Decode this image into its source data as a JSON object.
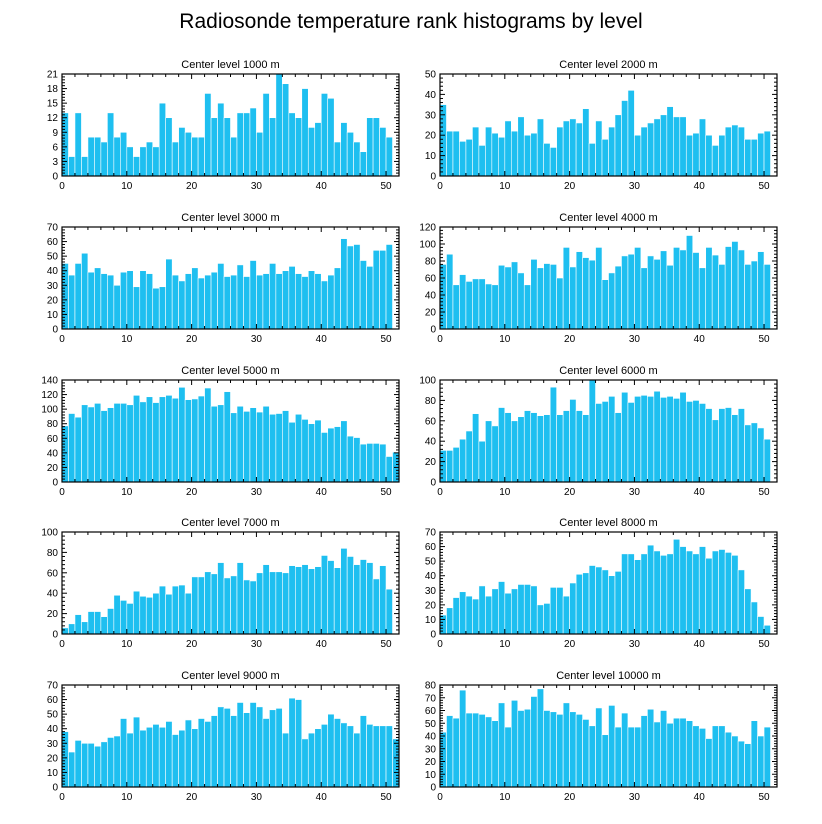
{
  "title": "Radiosonde temperature rank histograms by level",
  "chart_data": [
    {
      "type": "bar",
      "title": "Center level 1000 m",
      "xlim": [
        0,
        52
      ],
      "ylim": [
        0,
        21
      ],
      "xticks": [
        0,
        10,
        20,
        30,
        40,
        50
      ],
      "yticks": [
        0,
        3,
        6,
        9,
        12,
        15,
        18,
        21
      ],
      "values": [
        13,
        4,
        13,
        4,
        8,
        8,
        7,
        13,
        8,
        9,
        6,
        4,
        6,
        7,
        6,
        15,
        12,
        7,
        10,
        9,
        8,
        8,
        17,
        12,
        15,
        12,
        8,
        13,
        13,
        14,
        9,
        17,
        12,
        21,
        19,
        13,
        12,
        18,
        10,
        11,
        17,
        16,
        7,
        11,
        9,
        7,
        5,
        12,
        12,
        10,
        8
      ]
    },
    {
      "type": "bar",
      "title": "Center level 2000 m",
      "xlim": [
        0,
        52
      ],
      "ylim": [
        0,
        50
      ],
      "xticks": [
        0,
        10,
        20,
        30,
        40,
        50
      ],
      "yticks": [
        0,
        10,
        20,
        30,
        40,
        50
      ],
      "values": [
        35,
        22,
        22,
        17,
        18,
        24,
        15,
        24,
        21,
        19,
        27,
        22,
        29,
        20,
        21,
        28,
        16,
        14,
        24,
        27,
        28,
        26,
        33,
        16,
        27,
        18,
        24,
        30,
        37,
        42,
        20,
        24,
        26,
        28,
        30,
        34,
        29,
        29,
        20,
        21,
        28,
        20,
        15,
        20,
        24,
        25,
        24,
        18,
        18,
        21,
        22
      ]
    },
    {
      "type": "bar",
      "title": "Center level 3000 m",
      "xlim": [
        0,
        52
      ],
      "ylim": [
        0,
        70
      ],
      "xticks": [
        0,
        10,
        20,
        30,
        40,
        50
      ],
      "yticks": [
        0,
        10,
        20,
        30,
        40,
        50,
        60,
        70
      ],
      "values": [
        45,
        37,
        45,
        52,
        39,
        42,
        38,
        37,
        30,
        39,
        40,
        29,
        40,
        38,
        28,
        29,
        48,
        37,
        33,
        38,
        42,
        35,
        37,
        39,
        45,
        36,
        37,
        44,
        36,
        47,
        37,
        38,
        45,
        38,
        40,
        43,
        38,
        36,
        40,
        38,
        33,
        37,
        42,
        62,
        57,
        58,
        47,
        43,
        54,
        54,
        58
      ]
    },
    {
      "type": "bar",
      "title": "Center level 4000 m",
      "xlim": [
        0,
        52
      ],
      "ylim": [
        0,
        120
      ],
      "xticks": [
        0,
        10,
        20,
        30,
        40,
        50
      ],
      "yticks": [
        0,
        20,
        40,
        60,
        80,
        100,
        120
      ],
      "values": [
        76,
        88,
        52,
        64,
        56,
        59,
        59,
        53,
        52,
        75,
        73,
        79,
        66,
        52,
        82,
        72,
        77,
        76,
        60,
        96,
        73,
        91,
        84,
        81,
        96,
        58,
        66,
        74,
        86,
        88,
        96,
        72,
        86,
        82,
        92,
        75,
        96,
        93,
        110,
        90,
        72,
        96,
        87,
        76,
        97,
        103,
        93,
        76,
        80,
        91,
        76
      ]
    },
    {
      "type": "bar",
      "title": "Center level 5000 m",
      "xlim": [
        0,
        52
      ],
      "ylim": [
        0,
        140
      ],
      "xticks": [
        0,
        10,
        20,
        30,
        40,
        50
      ],
      "yticks": [
        0,
        20,
        40,
        60,
        80,
        100,
        120,
        140
      ],
      "values": [
        77,
        94,
        89,
        106,
        103,
        108,
        98,
        102,
        108,
        108,
        106,
        119,
        110,
        117,
        109,
        117,
        119,
        115,
        130,
        113,
        114,
        118,
        129,
        104,
        106,
        124,
        95,
        104,
        97,
        102,
        96,
        104,
        93,
        94,
        98,
        82,
        93,
        86,
        80,
        85,
        68,
        74,
        76,
        84,
        63,
        61,
        52,
        53,
        53,
        52,
        35,
        41
      ]
    },
    {
      "type": "bar",
      "title": "Center level 6000 m",
      "xlim": [
        0,
        52
      ],
      "ylim": [
        0,
        100
      ],
      "xticks": [
        0,
        10,
        20,
        30,
        40,
        50
      ],
      "yticks": [
        0,
        20,
        40,
        60,
        80,
        100
      ],
      "values": [
        31,
        31,
        34,
        42,
        50,
        67,
        40,
        60,
        55,
        73,
        68,
        60,
        64,
        70,
        68,
        65,
        66,
        93,
        66,
        70,
        81,
        70,
        66,
        100,
        77,
        79,
        84,
        68,
        88,
        78,
        84,
        85,
        84,
        89,
        83,
        84,
        82,
        88,
        79,
        80,
        77,
        72,
        61,
        72,
        73,
        66,
        72,
        56,
        58,
        53,
        42
      ]
    },
    {
      "type": "bar",
      "title": "Center level 7000 m",
      "xlim": [
        0,
        52
      ],
      "ylim": [
        0,
        100
      ],
      "xticks": [
        0,
        10,
        20,
        30,
        40,
        50
      ],
      "yticks": [
        0,
        20,
        40,
        60,
        80,
        100
      ],
      "values": [
        6,
        10,
        19,
        12,
        22,
        22,
        17,
        25,
        38,
        33,
        30,
        42,
        37,
        36,
        40,
        47,
        39,
        47,
        48,
        40,
        56,
        56,
        61,
        59,
        70,
        55,
        57,
        70,
        53,
        52,
        60,
        68,
        61,
        61,
        60,
        67,
        66,
        68,
        64,
        66,
        77,
        72,
        65,
        84,
        76,
        68,
        73,
        70,
        54,
        67,
        44
      ]
    },
    {
      "type": "bar",
      "title": "Center level 8000 m",
      "xlim": [
        0,
        52
      ],
      "ylim": [
        0,
        70
      ],
      "xticks": [
        0,
        10,
        20,
        30,
        40,
        50
      ],
      "yticks": [
        0,
        10,
        20,
        30,
        40,
        50,
        60,
        70
      ],
      "values": [
        13,
        18,
        25,
        29,
        26,
        24,
        33,
        26,
        31,
        36,
        28,
        31,
        34,
        34,
        33,
        20,
        21,
        32,
        32,
        26,
        35,
        41,
        42,
        47,
        46,
        44,
        40,
        43,
        55,
        55,
        51,
        55,
        61,
        57,
        54,
        55,
        65,
        60,
        57,
        55,
        60,
        52,
        57,
        58,
        56,
        54,
        44,
        31,
        22,
        12,
        6
      ]
    },
    {
      "type": "bar",
      "title": "Center level 9000 m",
      "xlim": [
        0,
        52
      ],
      "ylim": [
        0,
        70
      ],
      "xticks": [
        0,
        10,
        20,
        30,
        40,
        50
      ],
      "yticks": [
        0,
        10,
        20,
        30,
        40,
        50,
        60,
        70
      ],
      "values": [
        38,
        24,
        32,
        30,
        30,
        28,
        31,
        34,
        35,
        47,
        37,
        48,
        39,
        41,
        43,
        41,
        45,
        36,
        39,
        46,
        40,
        47,
        45,
        49,
        55,
        54,
        49,
        58,
        51,
        58,
        55,
        47,
        53,
        54,
        37,
        61,
        60,
        33,
        37,
        40,
        43,
        50,
        47,
        44,
        42,
        37,
        49,
        43,
        42,
        42,
        42,
        33
      ]
    },
    {
      "type": "bar",
      "title": "Center level 10000 m",
      "xlim": [
        0,
        52
      ],
      "ylim": [
        0,
        80
      ],
      "xticks": [
        0,
        10,
        20,
        30,
        40,
        50
      ],
      "yticks": [
        0,
        10,
        20,
        30,
        40,
        50,
        60,
        70,
        80
      ],
      "values": [
        43,
        56,
        54,
        76,
        58,
        58,
        57,
        55,
        52,
        66,
        47,
        68,
        60,
        61,
        71,
        77,
        60,
        59,
        57,
        66,
        59,
        57,
        53,
        48,
        62,
        41,
        64,
        47,
        58,
        47,
        47,
        56,
        61,
        51,
        60,
        50,
        54,
        54,
        52,
        48,
        46,
        38,
        48,
        48,
        43,
        40,
        36,
        34,
        52,
        40,
        47
      ]
    }
  ]
}
